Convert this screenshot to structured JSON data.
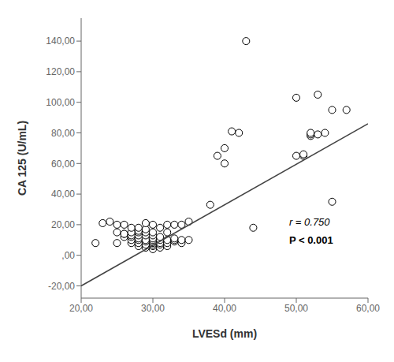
{
  "chart_data": {
    "type": "scatter",
    "xlabel": "LVESd (mm)",
    "ylabel": "CA 125 (U/mL)",
    "xlim": [
      20,
      60
    ],
    "ylim": [
      -28,
      155
    ],
    "xticks": [
      {
        "value": 20,
        "label": "20,00"
      },
      {
        "value": 30,
        "label": "30,00"
      },
      {
        "value": 40,
        "label": "40,00"
      },
      {
        "value": 50,
        "label": "50,00"
      },
      {
        "value": 60,
        "label": "60,00"
      }
    ],
    "yticks": [
      {
        "value": -20,
        "label": "-20,00"
      },
      {
        "value": 0,
        "label": ",00"
      },
      {
        "value": 20,
        "label": "20,00"
      },
      {
        "value": 40,
        "label": "40,00"
      },
      {
        "value": 60,
        "label": "60,00"
      },
      {
        "value": 80,
        "label": "80,00"
      },
      {
        "value": 100,
        "label": "100,00"
      },
      {
        "value": 120,
        "label": "120,00"
      },
      {
        "value": 140,
        "label": "140,00"
      }
    ],
    "grid": false,
    "series": [
      {
        "type": "scatter",
        "marker": "circle",
        "color": "#000000",
        "x": [
          22,
          23,
          24,
          25,
          25,
          25,
          26,
          26,
          26,
          26,
          27,
          27,
          27,
          27,
          27,
          27,
          28,
          28,
          28,
          28,
          28,
          28,
          28,
          28,
          29,
          29,
          29,
          29,
          29,
          29,
          29,
          29,
          30,
          30,
          30,
          30,
          30,
          30,
          30,
          30,
          30,
          30,
          31,
          31,
          31,
          31,
          31,
          31,
          32,
          32,
          32,
          32,
          32,
          33,
          33,
          33,
          33,
          34,
          34,
          34,
          35,
          35,
          38,
          39,
          40,
          40,
          41,
          42,
          43,
          44,
          50,
          50,
          51,
          51,
          52,
          52,
          52,
          53,
          53,
          54,
          55,
          55,
          57
        ],
        "values": [
          8,
          21,
          22,
          8,
          15,
          20,
          12,
          14,
          14,
          20,
          8,
          10,
          12,
          13,
          15,
          18,
          6,
          8,
          10,
          11,
          13,
          15,
          16,
          18,
          5,
          7,
          9,
          10,
          13,
          15,
          17,
          21,
          4,
          6,
          7,
          8,
          9,
          10,
          11,
          13,
          15,
          20,
          5,
          7,
          8,
          10,
          12,
          18,
          6,
          8,
          10,
          15,
          20,
          9,
          10,
          11,
          20,
          8,
          10,
          20,
          10,
          22,
          33,
          65,
          60,
          70,
          81,
          80,
          140,
          18,
          65,
          103,
          65,
          66,
          78,
          79,
          80,
          79,
          105,
          80,
          35,
          95,
          95
        ]
      },
      {
        "type": "line",
        "color": "#444444",
        "x": [
          20,
          60
        ],
        "values": [
          -20,
          86
        ]
      }
    ],
    "annotations": [
      {
        "text": "r = 0.750",
        "x": 49,
        "y": 22
      },
      {
        "text": "P < 0.001",
        "x": 49,
        "y": 10
      }
    ]
  }
}
